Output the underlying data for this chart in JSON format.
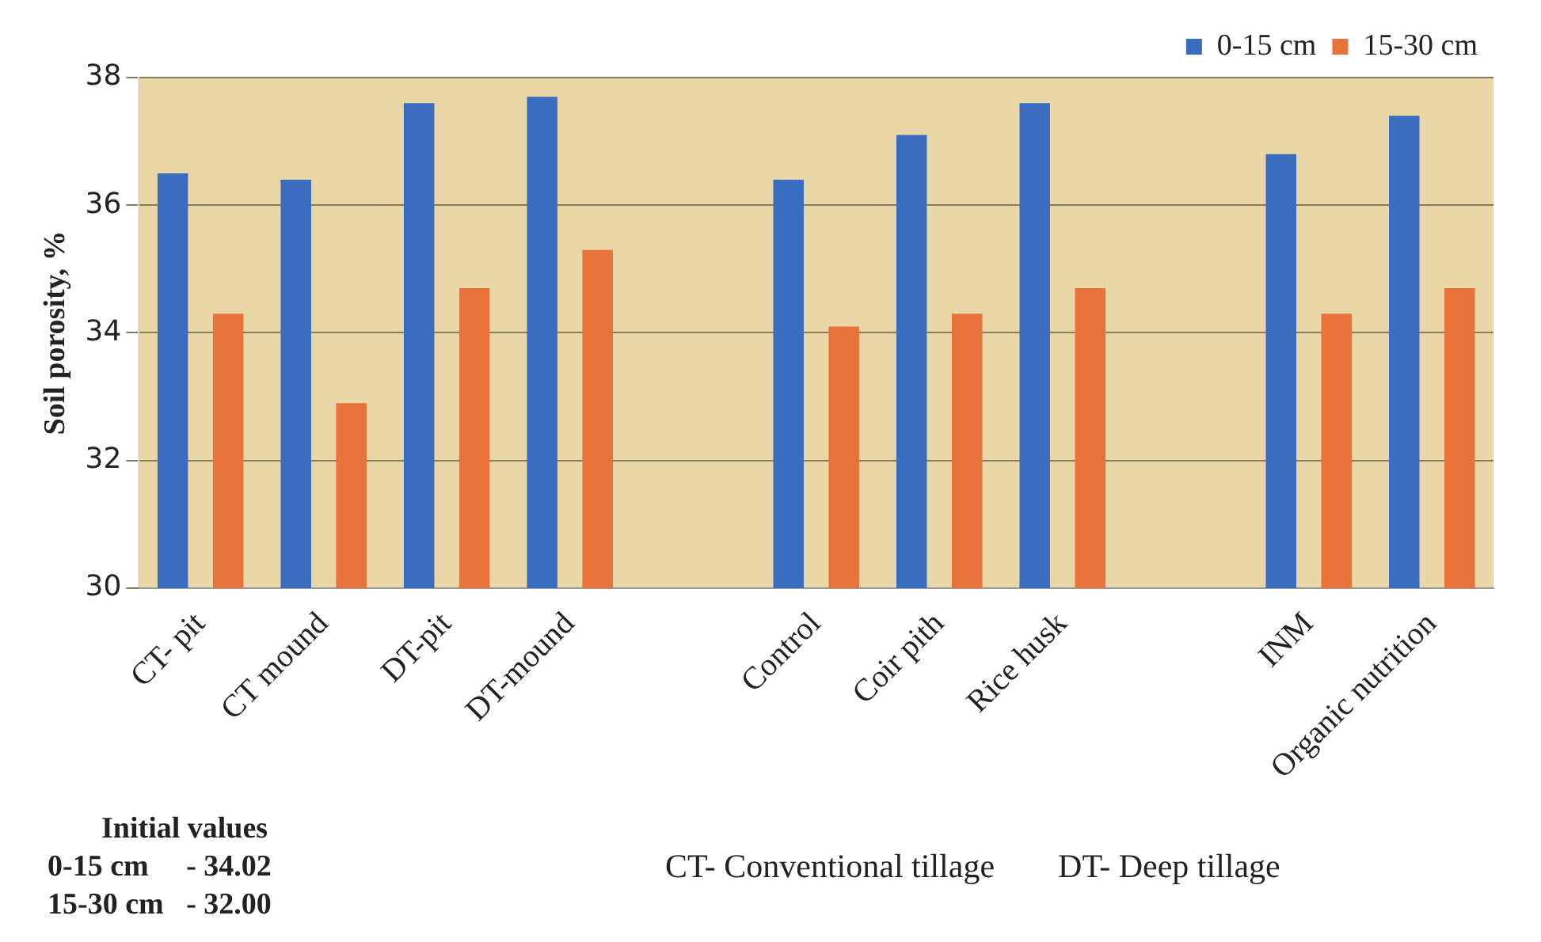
{
  "chart_data": {
    "type": "bar",
    "ylabel": "Soil porosity, %",
    "categories": [
      "CT- pit",
      "CT mound",
      "DT-pit",
      "DT-mound",
      null,
      "Control",
      "Coir pith",
      "Rice husk",
      null,
      "INM",
      "Organic nutrition"
    ],
    "series": [
      {
        "name": "0-15 cm",
        "color": "#3a6cc0",
        "values": [
          36.5,
          36.4,
          37.6,
          37.7,
          null,
          36.4,
          37.1,
          37.6,
          null,
          36.8,
          37.4
        ]
      },
      {
        "name": "15-30 cm",
        "color": "#e8733a",
        "values": [
          34.3,
          32.9,
          34.7,
          35.3,
          null,
          34.1,
          34.3,
          34.7,
          null,
          34.3,
          34.7
        ]
      }
    ],
    "ylim": [
      30,
      38
    ],
    "yticks": [
      30,
      32,
      34,
      36,
      38
    ],
    "grid": "y",
    "legend": "top right",
    "annotations": [
      "Initial values",
      "0-15 cm     - 34.02",
      "15-30 cm   - 32.00",
      "CT- Conventional tillage",
      "DT- Deep tillage"
    ]
  }
}
